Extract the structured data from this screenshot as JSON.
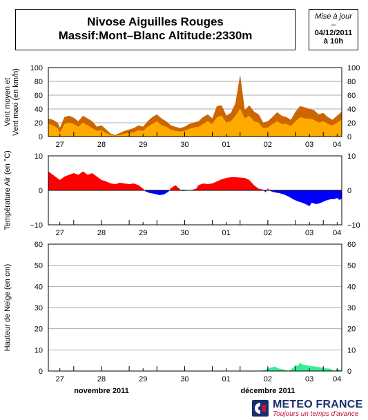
{
  "title": {
    "line1": "Nivose Aiguilles Rouges",
    "line2": "Massif:Mont–Blanc Altitude:2330m"
  },
  "update": {
    "label": "Mise à jour",
    "dash": "–",
    "date": "04/12/2011",
    "time": "à 10h"
  },
  "brand": {
    "name": "METEO FRANCE",
    "tagline": "Toujours un temps d'avance",
    "colors": {
      "blue": "#1a2e6e",
      "red": "#c0143c"
    }
  },
  "chart_data": {
    "type": "area",
    "x_unit": "hours since 27 Nov 2011 00h",
    "x_range": [
      -10,
      244
    ],
    "day_labels": [
      "27",
      "28",
      "29",
      "30",
      "01",
      "02",
      "03",
      "04"
    ],
    "day_label_hours": [
      0,
      36,
      72,
      108,
      144,
      180,
      216,
      240
    ],
    "month_labels": [
      {
        "text": "novembre 2011",
        "hour": 36
      },
      {
        "text": "décembre 2011",
        "hour": 180
      }
    ],
    "panels": [
      {
        "id": "wind",
        "ylabel": "Vent moyen et\nVent maxi (en km/h)",
        "ylim": [
          0,
          100
        ],
        "yticks": [
          0,
          20,
          40,
          60,
          80,
          100
        ],
        "grid": true,
        "series": [
          {
            "role": "max",
            "color": "#cc6600",
            "points": [
              [
                -10,
                26
              ],
              [
                -6,
                24
              ],
              [
                -2,
                20
              ],
              [
                0,
                12
              ],
              [
                4,
                28
              ],
              [
                8,
                30
              ],
              [
                12,
                27
              ],
              [
                16,
                22
              ],
              [
                20,
                30
              ],
              [
                24,
                26
              ],
              [
                28,
                22
              ],
              [
                32,
                14
              ],
              [
                36,
                16
              ],
              [
                40,
                10
              ],
              [
                44,
                4
              ],
              [
                48,
                2
              ],
              [
                52,
                5
              ],
              [
                56,
                8
              ],
              [
                60,
                10
              ],
              [
                64,
                12
              ],
              [
                68,
                16
              ],
              [
                72,
                14
              ],
              [
                76,
                22
              ],
              [
                80,
                28
              ],
              [
                84,
                32
              ],
              [
                88,
                26
              ],
              [
                92,
                22
              ],
              [
                96,
                16
              ],
              [
                100,
                14
              ],
              [
                104,
                12
              ],
              [
                108,
                14
              ],
              [
                112,
                18
              ],
              [
                116,
                20
              ],
              [
                120,
                22
              ],
              [
                124,
                28
              ],
              [
                128,
                32
              ],
              [
                132,
                26
              ],
              [
                136,
                44
              ],
              [
                140,
                45
              ],
              [
                144,
                30
              ],
              [
                148,
                34
              ],
              [
                152,
                48
              ],
              [
                156,
                88
              ],
              [
                160,
                38
              ],
              [
                164,
                45
              ],
              [
                168,
                36
              ],
              [
                172,
                32
              ],
              [
                176,
                20
              ],
              [
                180,
                22
              ],
              [
                184,
                28
              ],
              [
                188,
                35
              ],
              [
                192,
                30
              ],
              [
                196,
                28
              ],
              [
                200,
                24
              ],
              [
                204,
                36
              ],
              [
                208,
                44
              ],
              [
                212,
                42
              ],
              [
                216,
                40
              ],
              [
                220,
                38
              ],
              [
                224,
                32
              ],
              [
                228,
                34
              ],
              [
                232,
                28
              ],
              [
                236,
                24
              ],
              [
                240,
                30
              ],
              [
                244,
                36
              ]
            ]
          },
          {
            "role": "mean",
            "color": "#ffaa00",
            "points": [
              [
                -10,
                18
              ],
              [
                -6,
                16
              ],
              [
                -2,
                12
              ],
              [
                0,
                5
              ],
              [
                4,
                18
              ],
              [
                8,
                20
              ],
              [
                12,
                18
              ],
              [
                16,
                14
              ],
              [
                20,
                20
              ],
              [
                24,
                16
              ],
              [
                28,
                12
              ],
              [
                32,
                8
              ],
              [
                36,
                9
              ],
              [
                40,
                5
              ],
              [
                44,
                2
              ],
              [
                48,
                1
              ],
              [
                52,
                2
              ],
              [
                56,
                4
              ],
              [
                60,
                5
              ],
              [
                64,
                6
              ],
              [
                68,
                9
              ],
              [
                72,
                8
              ],
              [
                76,
                14
              ],
              [
                80,
                18
              ],
              [
                84,
                22
              ],
              [
                88,
                16
              ],
              [
                92,
                14
              ],
              [
                96,
                10
              ],
              [
                100,
                8
              ],
              [
                104,
                7
              ],
              [
                108,
                8
              ],
              [
                112,
                11
              ],
              [
                116,
                13
              ],
              [
                120,
                14
              ],
              [
                124,
                18
              ],
              [
                128,
                22
              ],
              [
                132,
                18
              ],
              [
                136,
                28
              ],
              [
                140,
                30
              ],
              [
                144,
                20
              ],
              [
                148,
                22
              ],
              [
                152,
                30
              ],
              [
                156,
                40
              ],
              [
                160,
                26
              ],
              [
                164,
                30
              ],
              [
                168,
                22
              ],
              [
                172,
                20
              ],
              [
                176,
                12
              ],
              [
                180,
                13
              ],
              [
                184,
                18
              ],
              [
                188,
                22
              ],
              [
                192,
                18
              ],
              [
                196,
                18
              ],
              [
                200,
                15
              ],
              [
                204,
                22
              ],
              [
                208,
                28
              ],
              [
                212,
                26
              ],
              [
                216,
                26
              ],
              [
                220,
                24
              ],
              [
                224,
                20
              ],
              [
                228,
                22
              ],
              [
                232,
                18
              ],
              [
                236,
                16
              ],
              [
                240,
                20
              ],
              [
                244,
                24
              ]
            ]
          }
        ]
      },
      {
        "id": "temperature",
        "ylabel": "Température Air (en °C)",
        "ylim": [
          -10,
          10
        ],
        "yticks": [
          -10,
          0,
          10
        ],
        "grid": false,
        "positive_color": "#ff0000",
        "negative_color": "#0000ff",
        "points": [
          [
            -10,
            5.5
          ],
          [
            -6,
            4.5
          ],
          [
            -2,
            3.5
          ],
          [
            0,
            3
          ],
          [
            4,
            4
          ],
          [
            8,
            4.5
          ],
          [
            12,
            5
          ],
          [
            16,
            4.5
          ],
          [
            20,
            5.5
          ],
          [
            24,
            4.5
          ],
          [
            28,
            5
          ],
          [
            32,
            4
          ],
          [
            36,
            3
          ],
          [
            40,
            2.6
          ],
          [
            44,
            2
          ],
          [
            48,
            1.8
          ],
          [
            52,
            2.2
          ],
          [
            56,
            2
          ],
          [
            60,
            1.8
          ],
          [
            64,
            2
          ],
          [
            68,
            1.5
          ],
          [
            72,
            0.5
          ],
          [
            74,
            -0.3
          ],
          [
            78,
            -0.8
          ],
          [
            82,
            -1
          ],
          [
            86,
            -1.4
          ],
          [
            90,
            -1.2
          ],
          [
            94,
            -0.4
          ],
          [
            96,
            0.6
          ],
          [
            100,
            1.5
          ],
          [
            104,
            0.3
          ],
          [
            106,
            -0.2
          ],
          [
            110,
            -0.1
          ],
          [
            114,
            0.1
          ],
          [
            118,
            0.5
          ],
          [
            120,
            1.5
          ],
          [
            124,
            2
          ],
          [
            128,
            1.8
          ],
          [
            132,
            2
          ],
          [
            136,
            2.6
          ],
          [
            140,
            3.2
          ],
          [
            144,
            3.6
          ],
          [
            148,
            3.8
          ],
          [
            152,
            3.8
          ],
          [
            156,
            3.7
          ],
          [
            160,
            3.6
          ],
          [
            164,
            3
          ],
          [
            168,
            1.5
          ],
          [
            172,
            0.5
          ],
          [
            176,
            0.2
          ],
          [
            178,
            -0.6
          ],
          [
            180,
            0.6
          ],
          [
            182,
            -0.2
          ],
          [
            186,
            -0.6
          ],
          [
            190,
            -0.8
          ],
          [
            194,
            -1.2
          ],
          [
            198,
            -1.8
          ],
          [
            202,
            -2.6
          ],
          [
            206,
            -3.2
          ],
          [
            210,
            -3.6
          ],
          [
            214,
            -4.2
          ],
          [
            216,
            -4.6
          ],
          [
            218,
            -3.6
          ],
          [
            222,
            -4
          ],
          [
            226,
            -3.6
          ],
          [
            230,
            -3
          ],
          [
            234,
            -2.6
          ],
          [
            238,
            -2.5
          ],
          [
            240,
            -2.2
          ],
          [
            242,
            -2.8
          ],
          [
            244,
            -2.4
          ]
        ]
      },
      {
        "id": "snow",
        "ylabel": "Hauteur de Neige (en cm)",
        "ylim": [
          0,
          60
        ],
        "yticks": [
          0,
          10,
          20,
          30,
          40,
          50,
          60
        ],
        "grid": true,
        "color": "#33ee99",
        "points": [
          [
            -10,
            0
          ],
          [
            174,
            0
          ],
          [
            178,
            0.5
          ],
          [
            182,
            1.5
          ],
          [
            186,
            2
          ],
          [
            190,
            1
          ],
          [
            194,
            0.6
          ],
          [
            198,
            0
          ],
          [
            200,
            0.6
          ],
          [
            204,
            2.6
          ],
          [
            206,
            2.4
          ],
          [
            208,
            3.8
          ],
          [
            210,
            3
          ],
          [
            214,
            2.6
          ],
          [
            218,
            2.2
          ],
          [
            222,
            2
          ],
          [
            226,
            1.6
          ],
          [
            230,
            1.2
          ],
          [
            234,
            1
          ],
          [
            236,
            0.4
          ],
          [
            238,
            0
          ],
          [
            240,
            1
          ],
          [
            242,
            0.4
          ],
          [
            244,
            0.6
          ]
        ]
      }
    ]
  }
}
